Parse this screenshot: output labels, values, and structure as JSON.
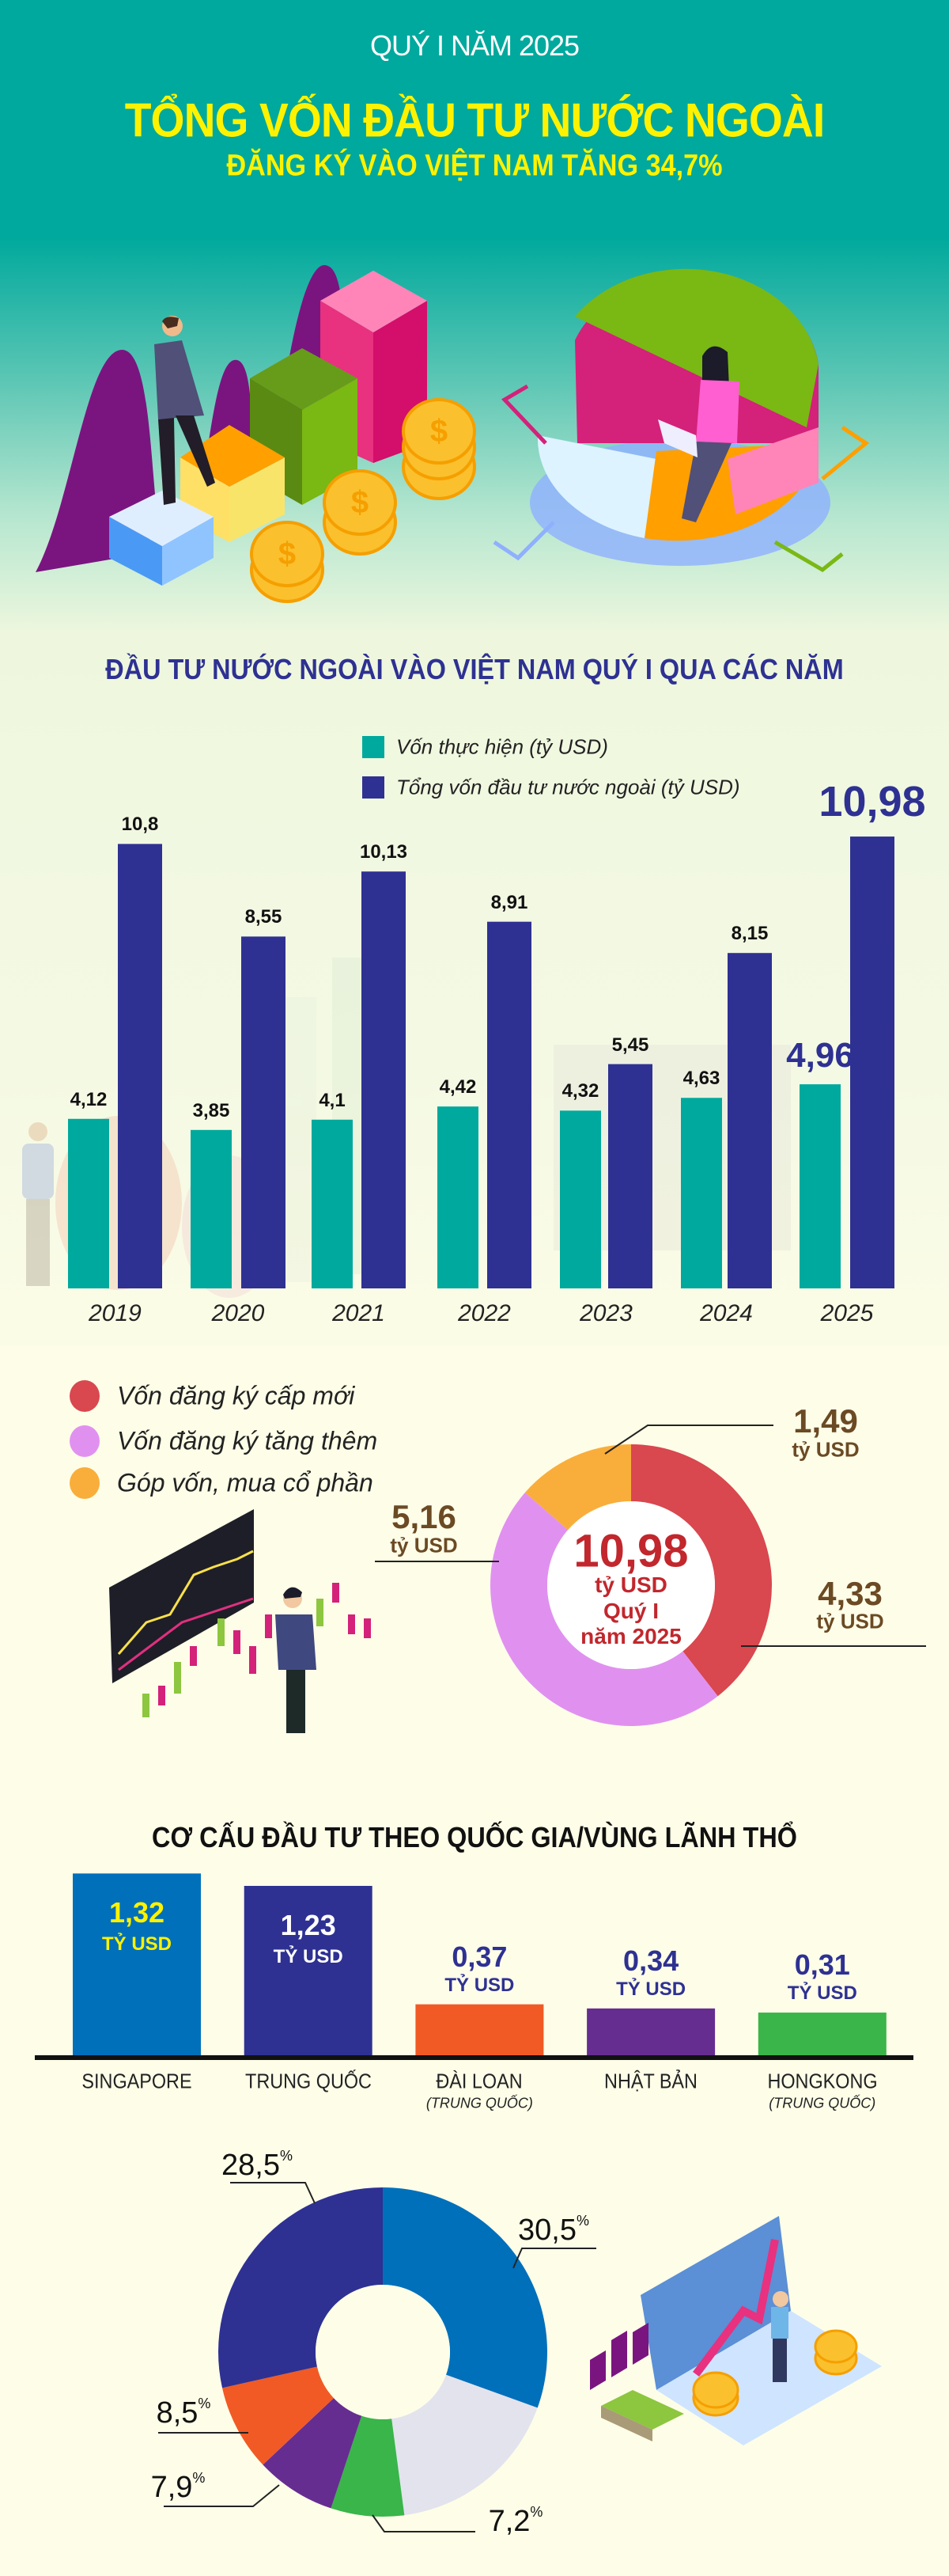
{
  "header": {
    "kicker": "QUÝ I NĂM 2025",
    "title": "TỔNG VỐN ĐẦU TƯ NƯỚC NGOÀI",
    "subtitle": "ĐĂNG KÝ VÀO VIỆT NAM TĂNG 34,7%"
  },
  "colors": {
    "teal": "#00a99d",
    "navy": "#2e3192",
    "yellow": "#fff200"
  },
  "chart_data": [
    {
      "type": "bar",
      "title": "ĐẦU TƯ NƯỚC NGOÀI VÀO VIỆT NAM QUÝ I QUA CÁC NĂM",
      "categories": [
        "2019",
        "2020",
        "2021",
        "2022",
        "2023",
        "2024",
        "2025"
      ],
      "series": [
        {
          "name": "Vốn thực hiện (tỷ USD)",
          "color": "#00a99d",
          "values": [
            4.12,
            3.85,
            4.1,
            4.42,
            4.32,
            4.63,
            4.96
          ],
          "labels": [
            "4,12",
            "3,85",
            "4,1",
            "4,42",
            "4,32",
            "4,63",
            "4,96"
          ]
        },
        {
          "name": "Tổng vốn đầu tư nước ngoài (tỷ USD)",
          "color": "#2e3192",
          "values": [
            10.8,
            8.55,
            10.13,
            8.91,
            5.45,
            8.15,
            10.98
          ],
          "labels": [
            "10,8",
            "8,55",
            "10,13",
            "8,91",
            "5,45",
            "8,15",
            "10,98"
          ]
        }
      ],
      "xlabel": "",
      "ylabel": "tỷ USD",
      "ylim": [
        0,
        11
      ],
      "grid": false,
      "legend": "top-center"
    },
    {
      "type": "pie",
      "center_value": "10,98",
      "center_unit": "tỷ USD",
      "center_period": "Quý I",
      "center_year": "năm 2025",
      "unit": "tỷ USD",
      "slices": [
        {
          "name": "Vốn đăng ký cấp mới",
          "value": 4.33,
          "label": "4,33",
          "color": "#d9474f"
        },
        {
          "name": "Vốn đăng ký tăng thêm",
          "value": 5.16,
          "label": "5,16",
          "color": "#e091f0"
        },
        {
          "name": "Góp vốn, mua cổ phần",
          "value": 1.49,
          "label": "1,49",
          "color": "#f9ae3b"
        }
      ],
      "legend": "top-left"
    },
    {
      "type": "bar",
      "title": "CƠ CẤU ĐẦU TƯ THEO QUỐC GIA/VÙNG LÃNH THỔ",
      "unit": "TỶ USD",
      "categories": [
        {
          "name": "SINGAPORE",
          "sub": ""
        },
        {
          "name": "TRUNG QUỐC",
          "sub": ""
        },
        {
          "name": "ĐÀI LOAN",
          "sub": "(TRUNG QUỐC)"
        },
        {
          "name": "NHẬT BẢN",
          "sub": ""
        },
        {
          "name": "HONGKONG",
          "sub": "(TRUNG QUỐC)"
        }
      ],
      "values": [
        1.32,
        1.23,
        0.37,
        0.34,
        0.31
      ],
      "labels": [
        "1,32",
        "1,23",
        "0,37",
        "0,34",
        "0,31"
      ],
      "colors": [
        "#0070bb",
        "#2e3192",
        "#f15a24",
        "#662d91",
        "#39b54a"
      ],
      "ylim": [
        0,
        1.4
      ]
    },
    {
      "type": "pie",
      "percent_sign": "%",
      "slices": [
        {
          "value": 30.5,
          "label": "30,5",
          "color": "#0070bb"
        },
        {
          "value": 17.4,
          "label": "",
          "color": "#e3e3ee"
        },
        {
          "value": 7.2,
          "label": "7,2",
          "color": "#39b54a"
        },
        {
          "value": 7.9,
          "label": "7,9",
          "color": "#662d91"
        },
        {
          "value": 8.5,
          "label": "8,5",
          "color": "#f15a24"
        },
        {
          "value": 28.5,
          "label": "28,5",
          "color": "#2e3192"
        }
      ]
    }
  ]
}
